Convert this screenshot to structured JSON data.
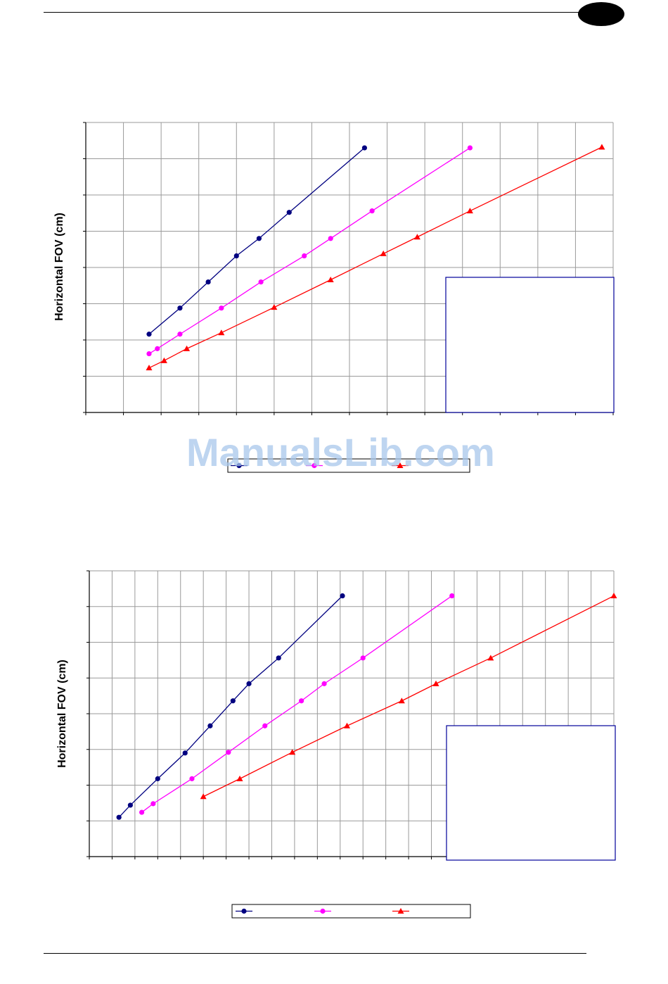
{
  "watermark": "ManualsLib.com",
  "colors": {
    "series1": "#000080",
    "series2": "#ff00ff",
    "series3": "#ff0000",
    "grid": "#9a9a9a",
    "legend_box": "#000099"
  },
  "chart_data": [
    {
      "type": "line",
      "title": "",
      "xlabel": "",
      "ylabel": "Horizontal FOV (cm)",
      "xlim": [
        0,
        14
      ],
      "ylim": [
        0,
        8
      ],
      "grid": true,
      "legend": "bottom-center",
      "series": [
        {
          "marker": "circle",
          "color": "#000080",
          "points": [
            [
              1.68,
              2.16
            ],
            [
              2.5,
              2.88
            ],
            [
              3.25,
              3.6
            ],
            [
              4.0,
              4.32
            ],
            [
              4.6,
              4.8
            ],
            [
              5.4,
              5.52
            ],
            [
              7.4,
              7.3
            ]
          ]
        },
        {
          "marker": "circle",
          "color": "#ff00ff",
          "points": [
            [
              1.68,
              1.62
            ],
            [
              1.9,
              1.76
            ],
            [
              2.5,
              2.16
            ],
            [
              3.6,
              2.88
            ],
            [
              4.65,
              3.6
            ],
            [
              5.8,
              4.32
            ],
            [
              6.5,
              4.8
            ],
            [
              7.6,
              5.56
            ],
            [
              10.2,
              7.3
            ]
          ]
        },
        {
          "marker": "triangle",
          "color": "#ff0000",
          "points": [
            [
              1.68,
              1.23
            ],
            [
              2.08,
              1.43
            ],
            [
              2.68,
              1.76
            ],
            [
              3.6,
              2.2
            ],
            [
              5.0,
              2.9
            ],
            [
              6.5,
              3.66
            ],
            [
              7.9,
              4.38
            ],
            [
              8.8,
              4.84
            ],
            [
              10.2,
              5.56
            ],
            [
              13.7,
              7.32
            ]
          ]
        }
      ]
    },
    {
      "type": "line",
      "title": "",
      "xlabel": "",
      "ylabel": "Horizontal FOV (cm)",
      "xlim": [
        0,
        23
      ],
      "ylim": [
        0,
        8
      ],
      "grid": true,
      "legend": "bottom-center",
      "series": [
        {
          "marker": "circle",
          "color": "#000080",
          "points": [
            [
              1.3,
              1.1
            ],
            [
              1.8,
              1.44
            ],
            [
              3.0,
              2.18
            ],
            [
              4.2,
              2.9
            ],
            [
              5.3,
              3.66
            ],
            [
              6.3,
              4.36
            ],
            [
              7.0,
              4.84
            ],
            [
              8.3,
              5.56
            ],
            [
              11.1,
              7.3
            ]
          ]
        },
        {
          "marker": "circle",
          "color": "#ff00ff",
          "points": [
            [
              2.3,
              1.24
            ],
            [
              2.8,
              1.48
            ],
            [
              4.5,
              2.18
            ],
            [
              6.1,
              2.92
            ],
            [
              7.7,
              3.66
            ],
            [
              9.3,
              4.36
            ],
            [
              10.3,
              4.84
            ],
            [
              12.0,
              5.56
            ],
            [
              15.9,
              7.3
            ]
          ]
        },
        {
          "marker": "triangle",
          "color": "#ff0000",
          "points": [
            [
              5.0,
              1.68
            ],
            [
              6.6,
              2.18
            ],
            [
              8.9,
              2.92
            ],
            [
              11.3,
              3.66
            ],
            [
              13.7,
              4.36
            ],
            [
              15.2,
              4.84
            ],
            [
              17.6,
              5.56
            ],
            [
              23.0,
              7.3
            ]
          ]
        }
      ]
    }
  ]
}
